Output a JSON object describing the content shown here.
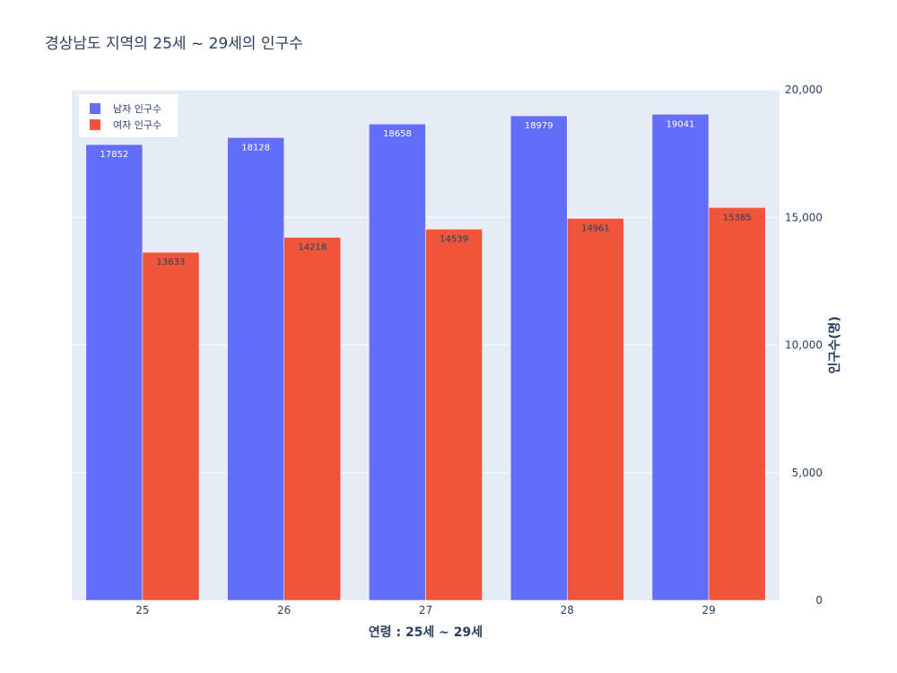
{
  "chart_data": {
    "type": "bar",
    "title": "경상남도 지역의 25세 ~ 29세의 인구수",
    "xlabel": "연령 : 25세 ~ 29세",
    "ylabel": "인구수(명)",
    "categories": [
      "25",
      "26",
      "27",
      "28",
      "29"
    ],
    "series": [
      {
        "name": "남자 인구수",
        "color": "#636efa",
        "values": [
          17852,
          18128,
          18658,
          18979,
          19041
        ]
      },
      {
        "name": "여자 인구수",
        "color": "#ef553b",
        "values": [
          13633,
          14218,
          14539,
          14961,
          15385
        ]
      }
    ],
    "ylim": [
      0,
      20000
    ],
    "yticks": [
      0,
      5000,
      10000,
      15000,
      20000
    ],
    "ytick_labels": [
      "0",
      "5,000",
      "10,000",
      "15,000",
      "20,000"
    ],
    "y_axis_side": "right",
    "legend_position": "top-left",
    "grid": true
  },
  "colors": {
    "plot_bg": "#e5ecf6",
    "grid": "#ffffff",
    "text": "#2a3f5f"
  }
}
